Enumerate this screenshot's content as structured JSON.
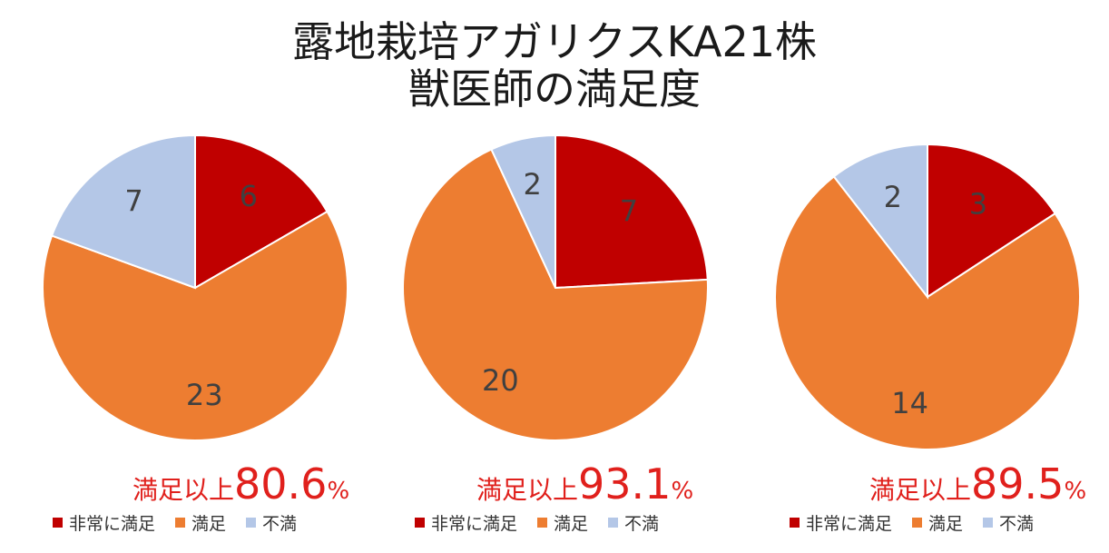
{
  "title_line1": "露地栽培アガリクスKA21株",
  "title_line2": "獣医師の満足度",
  "summary_label": "満足以上",
  "percent_sign": "%",
  "legend": [
    {
      "label": "非常に満足",
      "color": "#c00000"
    },
    {
      "label": "満足",
      "color": "#ed7d31"
    },
    {
      "label": "不満",
      "color": "#b4c7e7"
    }
  ],
  "chart_data": [
    {
      "type": "pie",
      "categories": [
        "非常に満足",
        "満足",
        "不満"
      ],
      "values": [
        6,
        23,
        7
      ],
      "summary_value": "80.6"
    },
    {
      "type": "pie",
      "categories": [
        "非常に満足",
        "満足",
        "不満"
      ],
      "values": [
        7,
        20,
        2
      ],
      "summary_value": "93.1"
    },
    {
      "type": "pie",
      "categories": [
        "非常に満足",
        "満足",
        "不満"
      ],
      "values": [
        3,
        14,
        2
      ],
      "summary_value": "89.5"
    }
  ]
}
